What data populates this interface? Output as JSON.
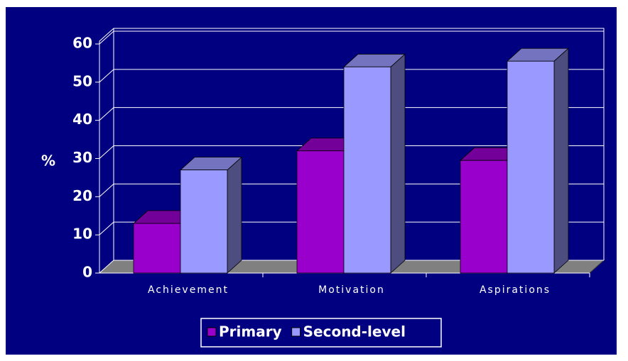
{
  "chart_data": {
    "type": "bar3d",
    "ylabel": "%",
    "categories": [
      "Achievement",
      "Motivation",
      "Aspirations"
    ],
    "series": [
      {
        "name": "Primary",
        "color": "#9900cc",
        "values": [
          13,
          32,
          29.5
        ]
      },
      {
        "name": "Second-level",
        "color": "#9999ff",
        "values": [
          27,
          54,
          55.5
        ]
      }
    ],
    "ylim": [
      0,
      60
    ],
    "yticks": [
      0,
      10,
      20,
      30,
      40,
      50,
      60
    ],
    "grid": true,
    "legend": "bottom"
  }
}
